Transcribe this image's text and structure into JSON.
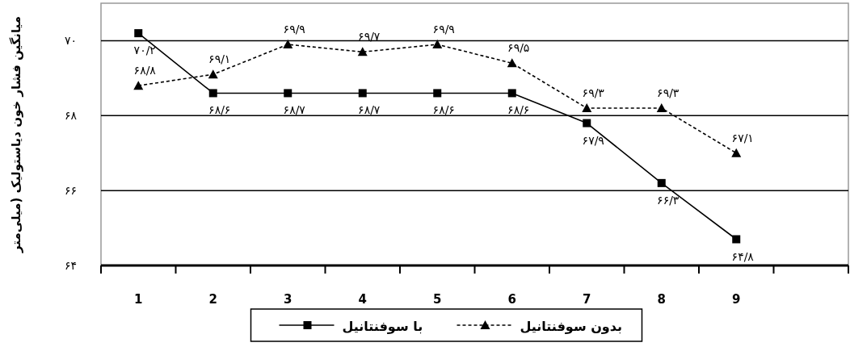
{
  "chart_data": {
    "type": "line",
    "ylabel": "میانگین فشار خون دیاستولیک (میلی‌متر",
    "categories": [
      "1",
      "2",
      "3",
      "4",
      "5",
      "6",
      "7",
      "8",
      "9",
      null
    ],
    "series": [
      {
        "name": "با سوفنتانیل",
        "color": "#000000",
        "marker": "square",
        "line_style": "solid",
        "values": [
          70.2,
          68.6,
          68.6,
          68.6,
          68.6,
          68.6,
          67.8,
          66.2,
          64.7,
          null
        ],
        "value_labels": [
          "۷۰/۲",
          "۶۸/۶",
          "۶۸/۷",
          "۶۸/۷",
          "۶۸/۶",
          "۶۸/۶",
          "۶۷/۹",
          "۶۶/۳",
          "۶۴/۸",
          null
        ]
      },
      {
        "name": "بدون سوفنتانیل",
        "color": "#000000",
        "marker": "triangle",
        "line_style": "dashed",
        "values": [
          68.8,
          69.1,
          69.9,
          69.7,
          69.9,
          69.4,
          68.2,
          68.2,
          67.0,
          null
        ],
        "value_labels": [
          "۶۸/۸",
          "۶۹/۱",
          "۶۹/۹",
          "۶۹/۷",
          "۶۹/۹",
          "۶۹/۵",
          "۶۹/۳",
          "۶۹/۳",
          "۶۷/۱",
          null
        ]
      }
    ],
    "ylim": [
      64,
      71
    ],
    "yticks": [
      {
        "value": 64,
        "label": "۶۴"
      },
      {
        "value": 66,
        "label": "۶۶"
      },
      {
        "value": 68,
        "label": "۶۸"
      },
      {
        "value": 70,
        "label": "۷۰"
      }
    ],
    "grid": "y",
    "legend": "bottom"
  }
}
